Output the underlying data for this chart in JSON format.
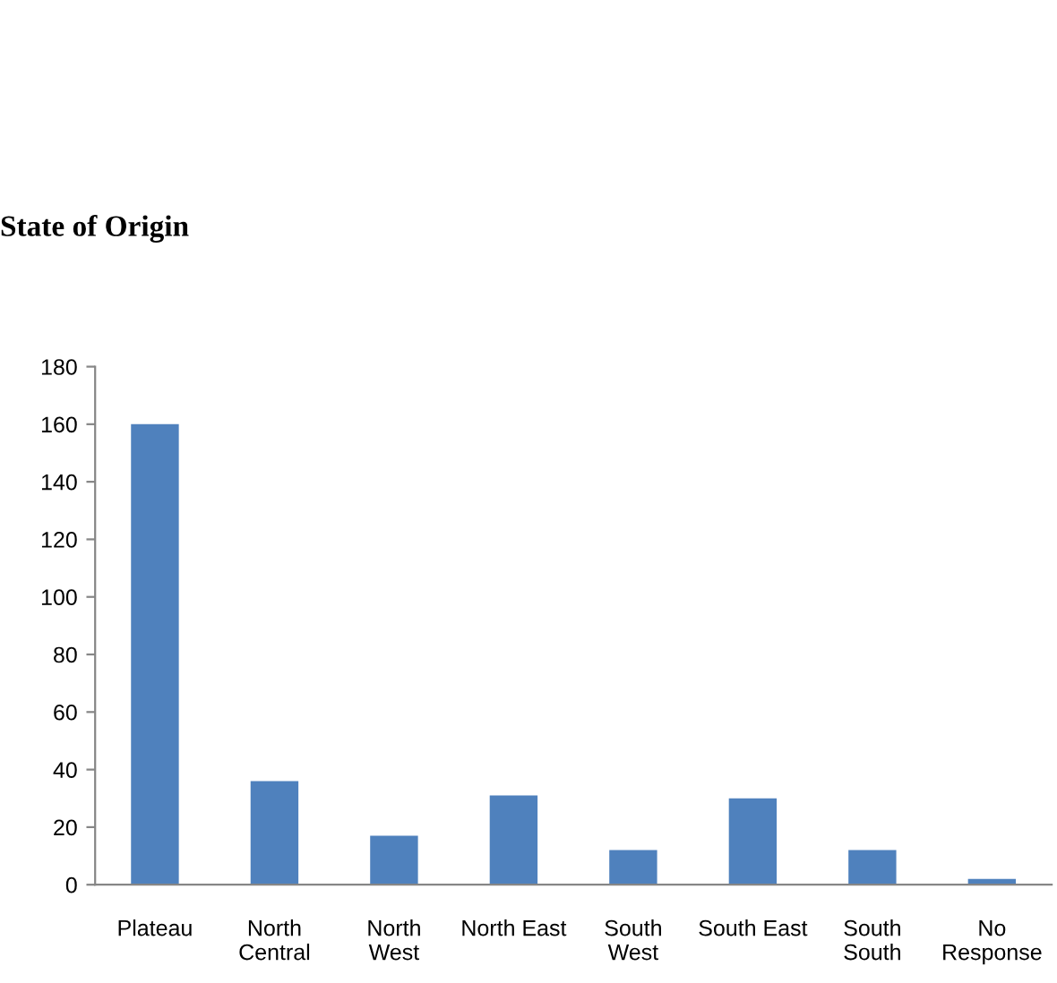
{
  "chart_data": {
    "type": "bar",
    "title": "State of Origin",
    "categories": [
      "Plateau",
      "North Central",
      "North West",
      "North East",
      "South West",
      "South East",
      "South South",
      "No Response"
    ],
    "values": [
      160,
      36,
      17,
      31,
      12,
      30,
      12,
      2
    ],
    "color": "#4f81bd",
    "ylim": [
      0,
      180
    ],
    "yticks": [
      0,
      20,
      40,
      60,
      80,
      100,
      120,
      140,
      160,
      180
    ],
    "grid": false,
    "legend": false
  }
}
